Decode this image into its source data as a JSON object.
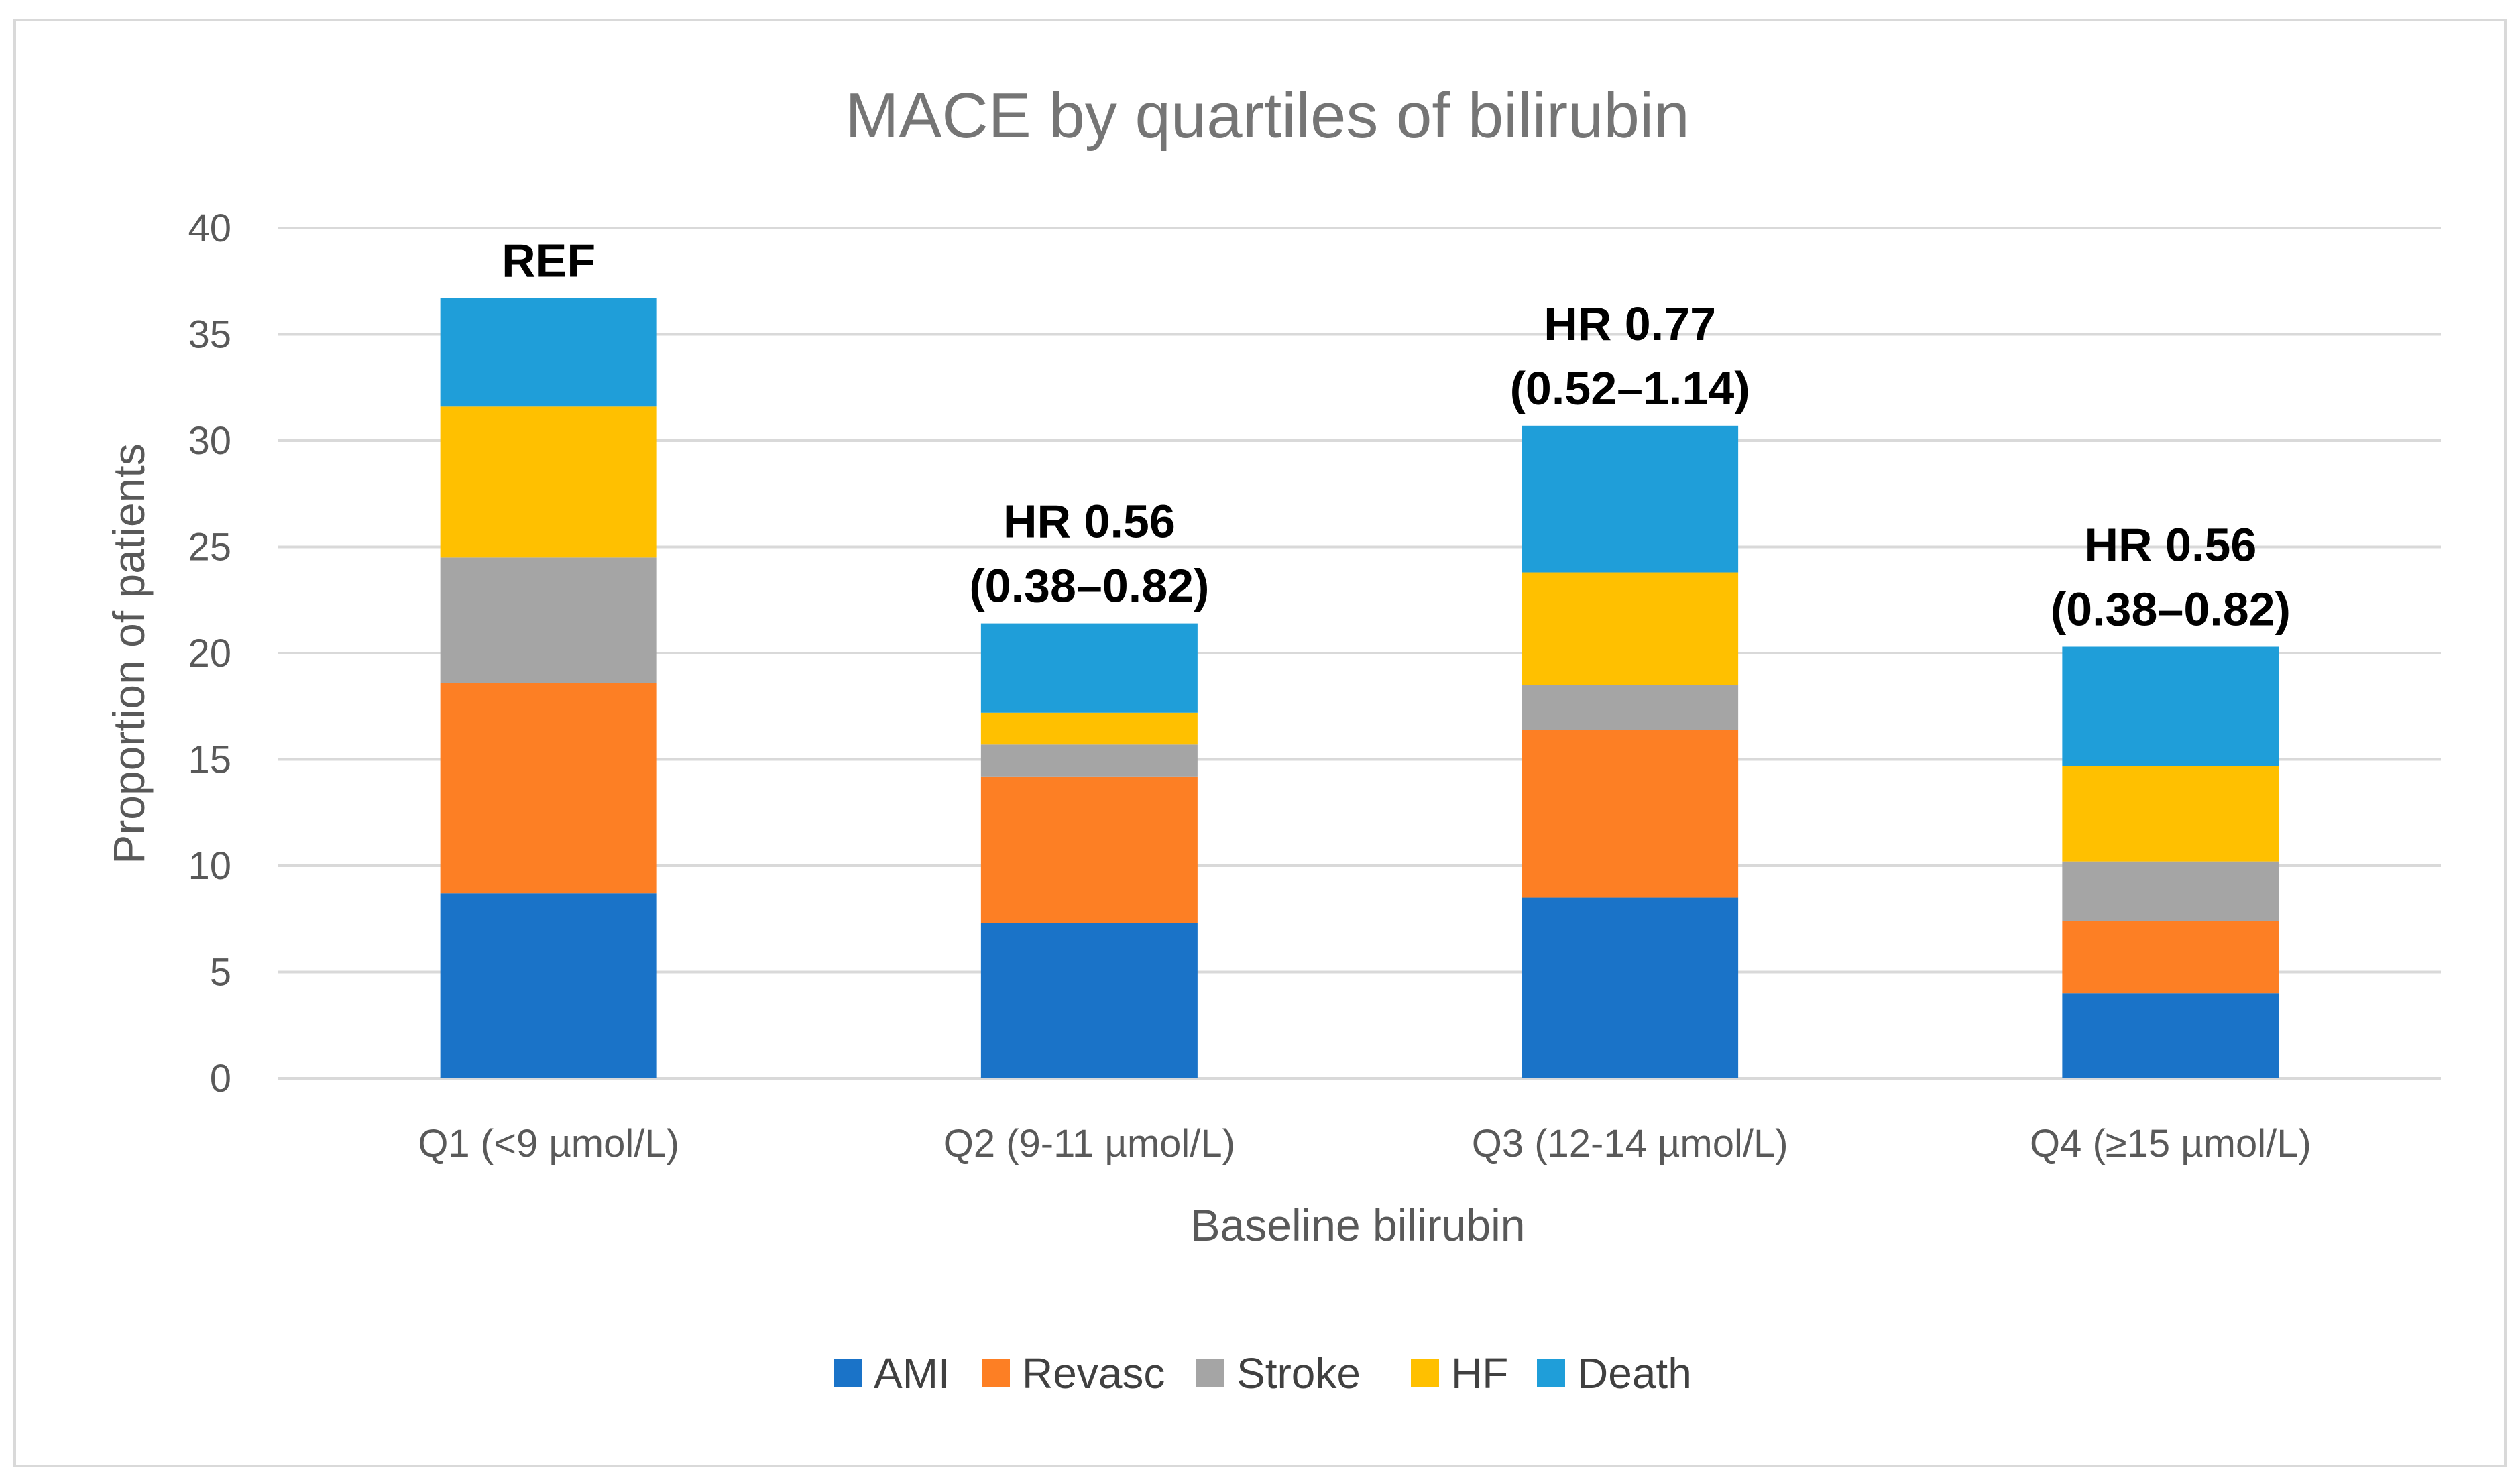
{
  "chart_data": {
    "type": "bar",
    "stacked": true,
    "title": "MACE by quartiles of bilirubin",
    "xlabel": "Baseline bilirubin",
    "ylabel": "Proportion of patients",
    "ylim": [
      0,
      40
    ],
    "yticks": [
      0,
      5,
      10,
      15,
      20,
      25,
      30,
      35,
      40
    ],
    "grid": true,
    "legend_position": "bottom",
    "categories": [
      "Q1 (<9 µmol/L)",
      "Q2 (9-11 µmol/L)",
      "Q3 (12-14 µmol/L)",
      "Q4 (≥15 µmol/L)"
    ],
    "series": [
      {
        "name": "AMI",
        "color": "#1a73c8",
        "values": [
          8.7,
          7.3,
          8.5,
          4.0
        ]
      },
      {
        "name": "Revasc",
        "color": "#fd7f24",
        "values": [
          9.9,
          6.9,
          7.9,
          3.4
        ]
      },
      {
        "name": "Stroke",
        "color": "#a5a5a5",
        "values": [
          5.9,
          1.5,
          2.1,
          2.8
        ]
      },
      {
        "name": "HF",
        "color": "#ffc000",
        "values": [
          7.1,
          1.5,
          5.3,
          4.5
        ]
      },
      {
        "name": "Death",
        "color": "#1f9ed9",
        "values": [
          5.1,
          4.2,
          6.9,
          5.6
        ]
      }
    ],
    "annotations": [
      {
        "lines": [
          "REF"
        ]
      },
      {
        "lines": [
          "HR 0.56",
          "(0.38–0.82)"
        ]
      },
      {
        "lines": [
          "HR 0.77",
          "(0.52–1.14)"
        ]
      },
      {
        "lines": [
          "HR 0.56",
          "(0.38–0.82)"
        ]
      }
    ]
  }
}
